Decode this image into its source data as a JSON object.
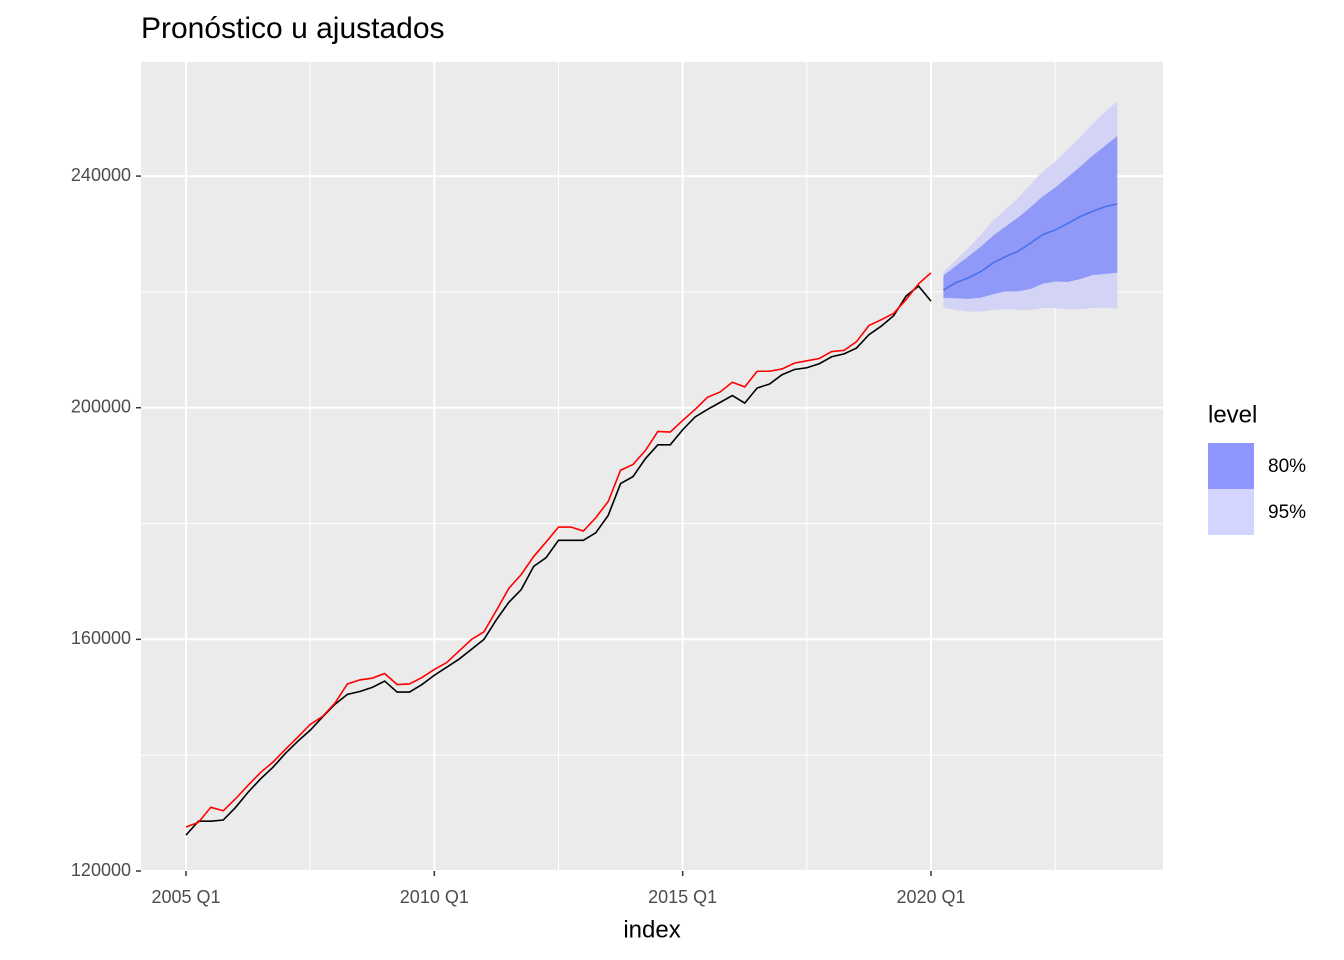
{
  "chart_data": {
    "type": "forecast",
    "title": "Pronóstico u ajustados",
    "x_label": "index",
    "x": [
      "2005 Q1",
      "2005 Q2",
      "2005 Q3",
      "2005 Q4",
      "2006 Q1",
      "2006 Q2",
      "2006 Q3",
      "2006 Q4",
      "2007 Q1",
      "2007 Q2",
      "2007 Q3",
      "2007 Q4",
      "2008 Q1",
      "2008 Q2",
      "2008 Q3",
      "2008 Q4",
      "2009 Q1",
      "2009 Q2",
      "2009 Q3",
      "2009 Q4",
      "2010 Q1",
      "2010 Q2",
      "2010 Q3",
      "2010 Q4",
      "2011 Q1",
      "2011 Q2",
      "2011 Q3",
      "2011 Q4",
      "2012 Q1",
      "2012 Q2",
      "2012 Q3",
      "2012 Q4",
      "2013 Q1",
      "2013 Q2",
      "2013 Q3",
      "2013 Q4",
      "2014 Q1",
      "2014 Q2",
      "2014 Q3",
      "2014 Q4",
      "2015 Q1",
      "2015 Q2",
      "2015 Q3",
      "2015 Q4",
      "2016 Q1",
      "2016 Q2",
      "2016 Q3",
      "2016 Q4",
      "2017 Q1",
      "2017 Q2",
      "2017 Q3",
      "2017 Q4",
      "2018 Q1",
      "2018 Q2",
      "2018 Q3",
      "2018 Q4",
      "2019 Q1",
      "2019 Q2",
      "2019 Q3",
      "2019 Q4",
      "2020 Q1",
      "2020 Q2",
      "2020 Q3",
      "2020 Q4",
      "2021 Q1",
      "2021 Q2",
      "2021 Q3",
      "2021 Q4",
      "2022 Q1",
      "2022 Q2",
      "2022 Q3",
      "2022 Q4",
      "2023 Q1",
      "2023 Q2",
      "2023 Q3",
      "2023 Q4"
    ],
    "xticks": [
      "2005 Q1",
      "2010 Q1",
      "2015 Q1",
      "2020 Q1"
    ],
    "ylim": [
      120000,
      259700
    ],
    "yticks": [
      120000,
      160000,
      200000,
      240000
    ],
    "series": [
      {
        "color": "#000000",
        "values": [
          126200,
          128600,
          128600,
          128800,
          131000,
          133600,
          135900,
          137900,
          140300,
          142400,
          144300,
          146600,
          148800,
          150500,
          151000,
          151700,
          152800,
          150900,
          150900,
          152200,
          153800,
          155200,
          156600,
          158300,
          160000,
          163400,
          166400,
          168600,
          172600,
          174100,
          177100,
          177100,
          177100,
          178400,
          181400,
          186900,
          188100,
          191200,
          193600,
          193600,
          196200,
          198400,
          199700,
          200900,
          202100,
          200800,
          203400,
          204100,
          205700,
          206600,
          206900,
          207600,
          208800,
          209300,
          210300,
          212600,
          214100,
          215900,
          219300,
          221000,
          218400,
          null,
          null,
          null,
          null,
          null,
          null,
          null,
          null,
          null,
          null,
          null,
          null,
          null,
          null,
          null
        ]
      },
      {
        "color": "#ff0000",
        "values": [
          127600,
          128400,
          131000,
          130400,
          132500,
          134800,
          137000,
          138800,
          141000,
          143100,
          145300,
          146700,
          149000,
          152300,
          153000,
          153300,
          154100,
          152200,
          152300,
          153400,
          154800,
          156000,
          158000,
          160000,
          161300,
          165000,
          168800,
          171200,
          174300,
          176800,
          179400,
          179400,
          178700,
          181000,
          183800,
          189200,
          190200,
          192600,
          195900,
          195800,
          197800,
          199700,
          201800,
          202700,
          204400,
          203600,
          206300,
          206300,
          206700,
          207700,
          208100,
          208500,
          209700,
          209900,
          211400,
          214200,
          215200,
          216300,
          218700,
          221400,
          223300,
          null,
          null,
          null,
          null,
          null,
          null,
          null,
          null,
          null,
          null,
          null,
          null,
          null,
          null,
          null
        ]
      },
      {
        "color": "#4a72e8",
        "values": [
          null,
          null,
          null,
          null,
          null,
          null,
          null,
          null,
          null,
          null,
          null,
          null,
          null,
          null,
          null,
          null,
          null,
          null,
          null,
          null,
          null,
          null,
          null,
          null,
          null,
          null,
          null,
          null,
          null,
          null,
          null,
          null,
          null,
          null,
          null,
          null,
          null,
          null,
          null,
          null,
          null,
          null,
          null,
          null,
          null,
          null,
          null,
          null,
          null,
          null,
          null,
          null,
          null,
          null,
          null,
          null,
          null,
          null,
          null,
          null,
          null,
          220300,
          221600,
          222400,
          223500,
          225000,
          226100,
          227000,
          228400,
          229900,
          230700,
          231800,
          233000,
          233900,
          234700,
          235200
        ]
      }
    ],
    "legend_title": "level",
    "bands": [
      {
        "name": "95%",
        "color": "#d3d3f5",
        "lower": [
          null,
          null,
          null,
          null,
          null,
          null,
          null,
          null,
          null,
          null,
          null,
          null,
          null,
          null,
          null,
          null,
          null,
          null,
          null,
          null,
          null,
          null,
          null,
          null,
          null,
          null,
          null,
          null,
          null,
          null,
          null,
          null,
          null,
          null,
          null,
          null,
          null,
          null,
          null,
          null,
          null,
          null,
          null,
          null,
          null,
          null,
          null,
          null,
          null,
          null,
          null,
          null,
          null,
          null,
          null,
          null,
          null,
          null,
          null,
          null,
          null,
          217200,
          216900,
          216600,
          216600,
          216900,
          217000,
          216900,
          216900,
          217200,
          217200,
          217000,
          217000,
          217200,
          217300,
          217100
        ],
        "upper": [
          null,
          null,
          null,
          null,
          null,
          null,
          null,
          null,
          null,
          null,
          null,
          null,
          null,
          null,
          null,
          null,
          null,
          null,
          null,
          null,
          null,
          null,
          null,
          null,
          null,
          null,
          null,
          null,
          null,
          null,
          null,
          null,
          null,
          null,
          null,
          null,
          null,
          null,
          null,
          null,
          null,
          null,
          null,
          null,
          null,
          null,
          null,
          null,
          null,
          null,
          null,
          null,
          null,
          null,
          null,
          null,
          null,
          null,
          null,
          null,
          null,
          223400,
          225500,
          227600,
          229800,
          232300,
          234200,
          236200,
          238500,
          240800,
          242500,
          244600,
          246700,
          249000,
          251100,
          252900
        ]
      },
      {
        "name": "80%",
        "color": "#9098f8",
        "lower": [
          null,
          null,
          null,
          null,
          null,
          null,
          null,
          null,
          null,
          null,
          null,
          null,
          null,
          null,
          null,
          null,
          null,
          null,
          null,
          null,
          null,
          null,
          null,
          null,
          null,
          null,
          null,
          null,
          null,
          null,
          null,
          null,
          null,
          null,
          null,
          null,
          null,
          null,
          null,
          null,
          null,
          null,
          null,
          null,
          null,
          null,
          null,
          null,
          null,
          null,
          null,
          null,
          null,
          null,
          null,
          null,
          null,
          null,
          null,
          null,
          null,
          219000,
          218900,
          218800,
          219000,
          219600,
          220100,
          220100,
          220500,
          221400,
          221800,
          221700,
          222200,
          222900,
          223100,
          223300
        ],
        "upper": [
          null,
          null,
          null,
          null,
          null,
          null,
          null,
          null,
          null,
          null,
          null,
          null,
          null,
          null,
          null,
          null,
          null,
          null,
          null,
          null,
          null,
          null,
          null,
          null,
          null,
          null,
          null,
          null,
          null,
          null,
          null,
          null,
          null,
          null,
          null,
          null,
          null,
          null,
          null,
          null,
          null,
          null,
          null,
          null,
          null,
          null,
          null,
          null,
          null,
          null,
          null,
          null,
          null,
          null,
          null,
          null,
          null,
          null,
          null,
          null,
          null,
          222800,
          224500,
          226100,
          227800,
          229700,
          231300,
          232800,
          234600,
          236500,
          238000,
          239800,
          241600,
          243500,
          245200,
          246900
        ]
      }
    ],
    "legend_colors": {
      "80%": "#8f95ff",
      "95%": "#d3d4ff"
    },
    "grid": true
  }
}
